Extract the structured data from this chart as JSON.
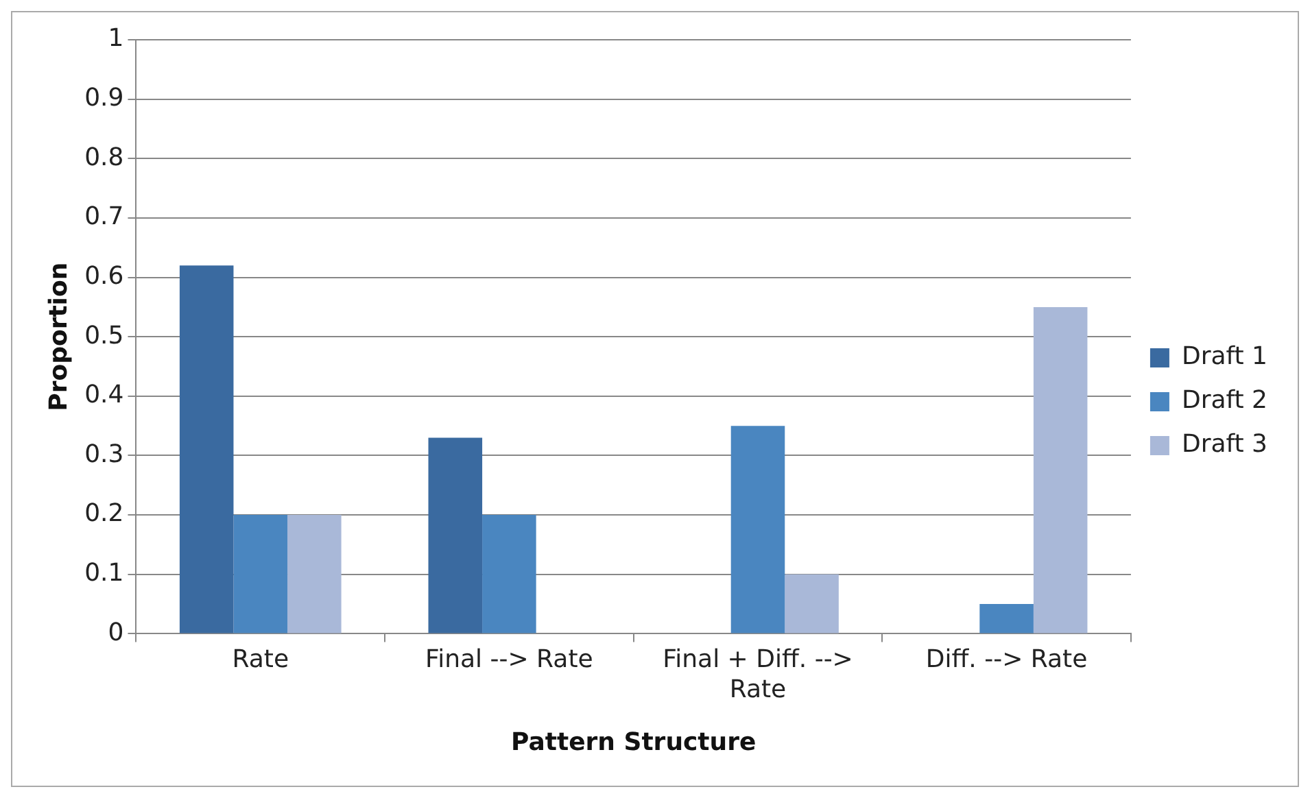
{
  "chart_data": {
    "type": "bar",
    "xlabel": "Pattern Structure",
    "ylabel": "Proportion",
    "categories": [
      "Rate",
      "Final --> Rate",
      "Final + Diff. --> Rate",
      "Diff. --> Rate"
    ],
    "series": [
      {
        "name": "Draft 1",
        "color": "#3a6aa0",
        "values": [
          0.62,
          0.33,
          0,
          0
        ]
      },
      {
        "name": "Draft 2",
        "color": "#4a86c0",
        "values": [
          0.2,
          0.2,
          0.35,
          0.05
        ]
      },
      {
        "name": "Draft 3",
        "color": "#a9b8d8",
        "values": [
          0.2,
          0,
          0.1,
          0.55
        ]
      }
    ],
    "ylim": [
      0,
      1
    ],
    "yticks": [
      0,
      0.1,
      0.2,
      0.3,
      0.4,
      0.5,
      0.6,
      0.7,
      0.8,
      0.9,
      1
    ],
    "grid": "y",
    "legend": "right"
  }
}
